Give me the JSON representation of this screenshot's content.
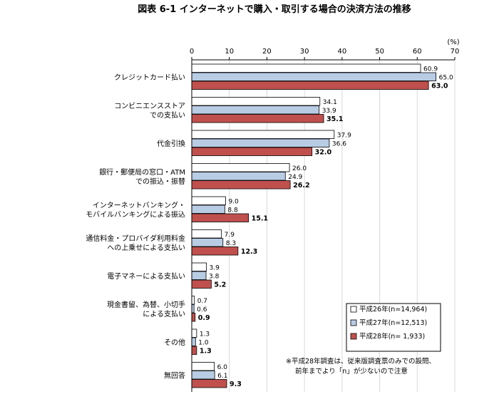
{
  "chart_data": {
    "type": "bar",
    "orientation": "horizontal",
    "title": "図表 6-1 インターネットで購入・取引する場合の決済方法の推移",
    "unit_label": "(%)",
    "xlim": [
      0,
      70
    ],
    "ticks": [
      0,
      10,
      20,
      30,
      40,
      50,
      60,
      70
    ],
    "categories": [
      [
        "クレジットカード払い"
      ],
      [
        "コンビニエンスストア",
        "での支払い"
      ],
      [
        "代金引換"
      ],
      [
        "銀行・郵便局の窓口・ATM",
        "での振込・振替"
      ],
      [
        "インターネットバンキング・",
        "モバイルバンキングによる振込"
      ],
      [
        "通信料金・プロバイダ利用料金",
        "への上乗せによる支払い"
      ],
      [
        "電子マネーによる支払い"
      ],
      [
        "現金書留、為替、小切手",
        "による支払い"
      ],
      [
        "その他"
      ],
      [
        "無回答"
      ]
    ],
    "series": [
      {
        "name": "平成26年(n=14,964)",
        "color": "#ffffff",
        "values": [
          60.9,
          34.1,
          37.9,
          26.0,
          9.0,
          7.9,
          3.9,
          0.7,
          1.3,
          6.0
        ],
        "labels": [
          "60.9",
          "34.1",
          "37.9",
          "26.0",
          "9.0",
          "7.9",
          "3.9",
          "0.7",
          "1.3",
          "6.0"
        ]
      },
      {
        "name": "平成27年(n=12,513)",
        "color": "#b8cce4",
        "values": [
          65.0,
          33.9,
          36.6,
          24.9,
          8.8,
          8.3,
          3.8,
          0.6,
          1.0,
          6.1
        ],
        "labels": [
          "65.0",
          "33.9",
          "36.6",
          "24.9",
          "8.8",
          "8.3",
          "3.8",
          "0.6",
          "1.0",
          "6.1"
        ]
      },
      {
        "name": "平成28年(n= 1,933)",
        "color": "#c0504d",
        "values": [
          63.0,
          35.1,
          32.0,
          26.2,
          15.1,
          12.3,
          5.2,
          0.9,
          1.3,
          9.3
        ],
        "labels": [
          "63.0",
          "35.1",
          "32.0",
          "26.2",
          "15.1",
          "12.3",
          "5.2",
          "0.9",
          "1.3",
          "9.3"
        ]
      }
    ],
    "legend_position": "bottom-right",
    "note": [
      "※平成28年調査は、従来版調査票のみでの設問、",
      "前年までより「n」が少ないので注意"
    ]
  }
}
